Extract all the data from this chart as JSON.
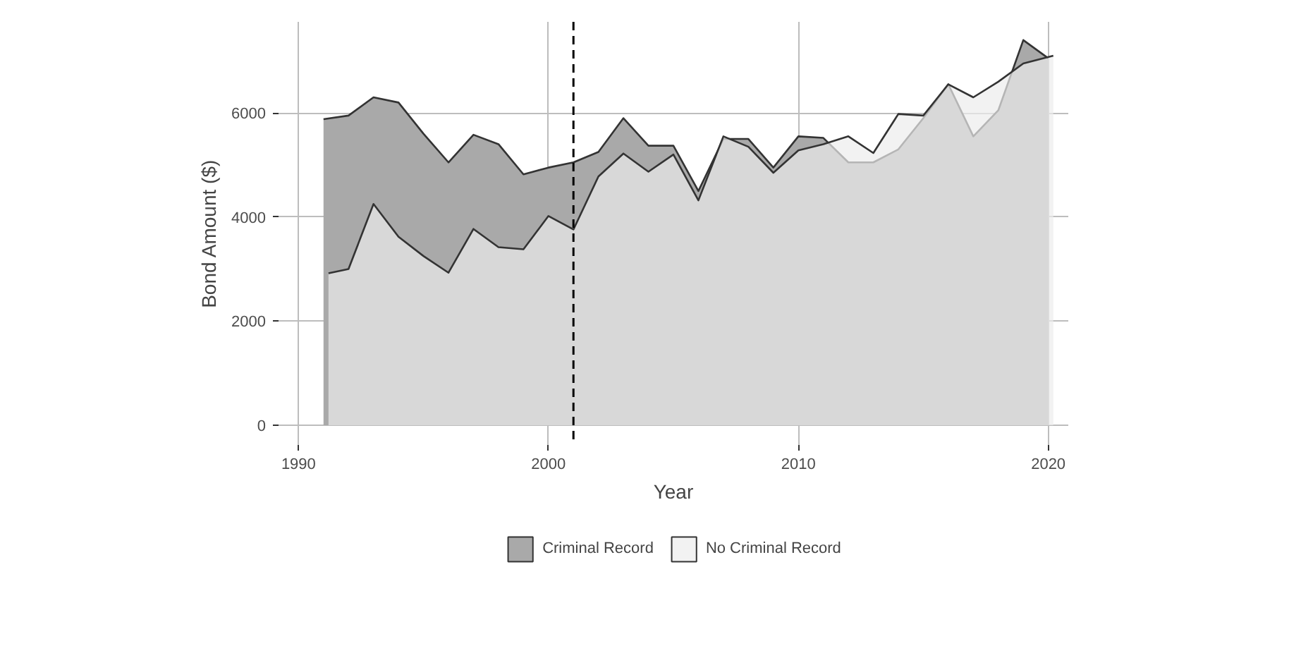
{
  "chart_data": {
    "type": "area",
    "xlabel": "Year",
    "ylabel": "Bond Amount ($)",
    "series": [
      {
        "name": "Criminal Record",
        "color": "#a9a9a9",
        "x": [
          1991,
          1992,
          1993,
          1994,
          1995,
          1996,
          1997,
          1998,
          1999,
          2000,
          2001,
          2002,
          2003,
          2004,
          2005,
          2006,
          2007,
          2008,
          2009,
          2010,
          2011,
          2012,
          2013,
          2014,
          2015,
          2016,
          2017,
          2018,
          2019,
          2020
        ],
        "values": [
          5880,
          5950,
          6300,
          6200,
          5600,
          5050,
          5580,
          5400,
          4820,
          4950,
          5050,
          5250,
          5900,
          5370,
          5370,
          4500,
          5500,
          5500,
          4950,
          5550,
          5520,
          5050,
          5050,
          5300,
          5900,
          6550,
          5550,
          6050,
          7400,
          7050
        ]
      },
      {
        "name": "No Criminal Record",
        "color": "#ececec",
        "x": [
          1991.2,
          1992,
          1993,
          1994,
          1995,
          1996,
          1997,
          1998,
          1999,
          2000,
          2001,
          2002,
          2003,
          2004,
          2005,
          2006,
          2007,
          2008,
          2009,
          2010,
          2011,
          2012,
          2013,
          2014,
          2015,
          2016,
          2017,
          2018,
          2019,
          2020.2
        ],
        "values": [
          2920,
          3000,
          4250,
          3620,
          3250,
          2930,
          3770,
          3420,
          3380,
          4020,
          3760,
          4780,
          5220,
          4870,
          5200,
          4320,
          5550,
          5350,
          4850,
          5280,
          5400,
          5550,
          5230,
          5980,
          5950,
          6550,
          6300,
          6600,
          6950,
          7100
        ]
      }
    ],
    "xlim": [
      1989.2,
      2020.8
    ],
    "xticks": [
      1990,
      2000,
      2010,
      2020
    ],
    "ylim": [
      -380,
      7750
    ],
    "yticks": [
      0,
      2000,
      4000,
      6000
    ],
    "ref_lines": [
      {
        "axis": "x",
        "value": 2001,
        "line_style": "dashed",
        "color": "#000000"
      }
    ],
    "grid": true,
    "legend": "bottom"
  }
}
